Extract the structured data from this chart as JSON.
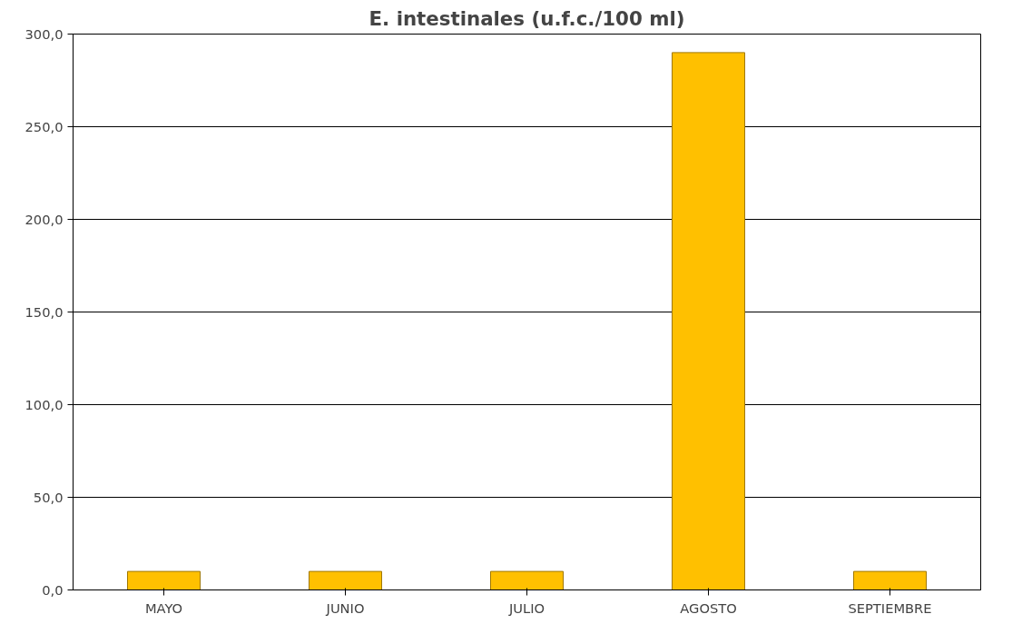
{
  "chart_data": {
    "type": "bar",
    "title": "E. intestinales (u.f.c./100 ml)",
    "categories": [
      "MAYO",
      "JUNIO",
      "JULIO",
      "AGOSTO",
      "SEPTIEMBRE"
    ],
    "values": [
      10,
      10,
      10,
      290,
      10
    ],
    "color": "#ffc000",
    "ylim": [
      0,
      300
    ],
    "yticks": [
      {
        "value": 0,
        "label": "0,0"
      },
      {
        "value": 50,
        "label": "50,0"
      },
      {
        "value": 100,
        "label": "100,0"
      },
      {
        "value": 150,
        "label": "150,0"
      },
      {
        "value": 200,
        "label": "200,0"
      },
      {
        "value": 250,
        "label": "250,0"
      },
      {
        "value": 300,
        "label": "300,0"
      }
    ],
    "grid": "y"
  }
}
